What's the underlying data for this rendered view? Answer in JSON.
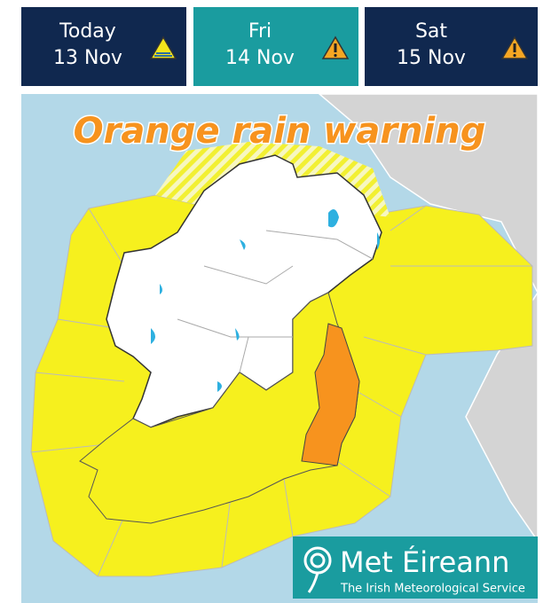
{
  "tabs": [
    {
      "day": "Today",
      "date": "13 Nov"
    },
    {
      "day": "Fri",
      "date": "14 Nov"
    },
    {
      "day": "Sat",
      "date": "15 Nov"
    }
  ],
  "map": {
    "title": "Orange rain warning"
  },
  "logo": {
    "name": "Met Éireann",
    "tagline": "The Irish Meteorological Service"
  }
}
